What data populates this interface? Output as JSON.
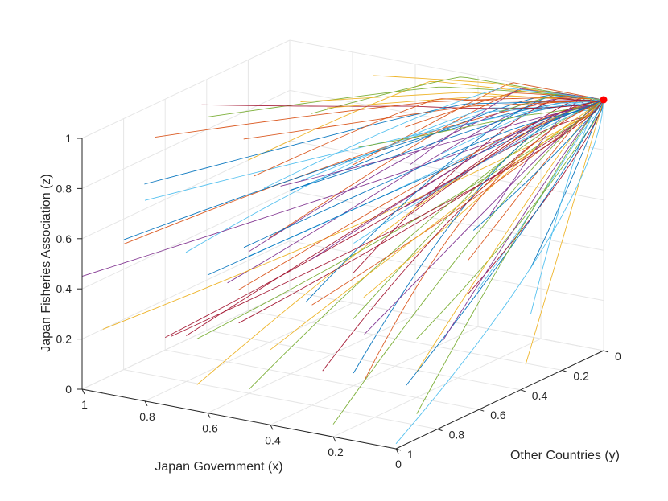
{
  "chart_data": {
    "type": "line3d",
    "xlabel": "Japan Government (x)",
    "ylabel": "Other Countries (y)",
    "zlabel": "Japan Fisheries Association (z)",
    "xlim": [
      0,
      1
    ],
    "ylim": [
      0,
      1
    ],
    "zlim": [
      0,
      1
    ],
    "x_ticks": [
      "0",
      "0.2",
      "0.4",
      "0.6",
      "0.8",
      "1"
    ],
    "y_ticks": [
      "0",
      "0.2",
      "0.4",
      "0.6",
      "0.8",
      "1"
    ],
    "z_ticks": [
      "0",
      "0.2",
      "0.4",
      "0.6",
      "0.8",
      "1"
    ],
    "grid": true,
    "trajectory_colors": [
      "#0072BD",
      "#D95319",
      "#EDB120",
      "#7E2F8E",
      "#77AC30",
      "#4DBEEE",
      "#A2142F"
    ],
    "equilibrium_point": {
      "x": 0,
      "y": 0,
      "z": 1,
      "color": "#ff0000"
    },
    "trajectories": [
      {
        "start": [
          1.0,
          0.0,
          0.4
        ]
      },
      {
        "start": [
          1.0,
          0.1,
          0.25
        ]
      },
      {
        "start": [
          1.0,
          0.2,
          0.6
        ]
      },
      {
        "start": [
          1.0,
          0.3,
          0.15
        ]
      },
      {
        "start": [
          1.0,
          0.4,
          0.85
        ]
      },
      {
        "start": [
          1.0,
          0.5,
          0.35
        ]
      },
      {
        "start": [
          1.0,
          0.6,
          0.05
        ]
      },
      {
        "start": [
          1.0,
          0.7,
          0.7
        ]
      },
      {
        "start": [
          1.0,
          0.8,
          0.5
        ]
      },
      {
        "start": [
          1.0,
          0.9,
          0.2
        ]
      },
      {
        "start": [
          1.0,
          1.0,
          0.45
        ]
      },
      {
        "start": [
          0.9,
          0.05,
          0.75
        ]
      },
      {
        "start": [
          0.9,
          0.35,
          0.3
        ]
      },
      {
        "start": [
          0.9,
          0.65,
          0.1
        ]
      },
      {
        "start": [
          0.9,
          0.95,
          0.6
        ]
      },
      {
        "start": [
          0.8,
          0.0,
          0.55
        ]
      },
      {
        "start": [
          0.8,
          0.25,
          0.9
        ]
      },
      {
        "start": [
          0.8,
          0.5,
          0.4
        ]
      },
      {
        "start": [
          0.8,
          0.75,
          0.15
        ]
      },
      {
        "start": [
          0.8,
          1.0,
          0.8
        ]
      },
      {
        "start": [
          0.7,
          0.15,
          0.2
        ]
      },
      {
        "start": [
          0.7,
          0.45,
          0.65
        ]
      },
      {
        "start": [
          0.7,
          0.7,
          0.35
        ]
      },
      {
        "start": [
          0.7,
          0.9,
          0.05
        ]
      },
      {
        "start": [
          0.6,
          0.05,
          0.45
        ]
      },
      {
        "start": [
          0.6,
          0.3,
          0.1
        ]
      },
      {
        "start": [
          0.6,
          0.55,
          0.75
        ]
      },
      {
        "start": [
          0.6,
          0.85,
          0.3
        ]
      },
      {
        "start": [
          0.6,
          1.0,
          0.55
        ]
      },
      {
        "start": [
          0.5,
          0.2,
          0.85
        ]
      },
      {
        "start": [
          0.5,
          0.4,
          0.25
        ]
      },
      {
        "start": [
          0.5,
          0.65,
          0.5
        ]
      },
      {
        "start": [
          0.5,
          0.95,
          0.1
        ]
      },
      {
        "start": [
          0.4,
          0.0,
          0.15
        ]
      },
      {
        "start": [
          0.4,
          0.3,
          0.6
        ]
      },
      {
        "start": [
          0.4,
          0.6,
          0.05
        ]
      },
      {
        "start": [
          0.4,
          0.8,
          0.4
        ]
      },
      {
        "start": [
          0.4,
          1.0,
          0.3
        ]
      },
      {
        "start": [
          0.3,
          0.1,
          0.5
        ]
      },
      {
        "start": [
          0.3,
          0.45,
          0.15
        ]
      },
      {
        "start": [
          0.3,
          0.75,
          0.65
        ]
      },
      {
        "start": [
          0.3,
          0.9,
          0.2
        ]
      },
      {
        "start": [
          0.2,
          0.05,
          0.3
        ]
      },
      {
        "start": [
          0.2,
          0.35,
          0.45
        ]
      },
      {
        "start": [
          0.2,
          0.6,
          0.1
        ]
      },
      {
        "start": [
          0.2,
          0.85,
          0.35
        ]
      },
      {
        "start": [
          0.2,
          1.0,
          0.05
        ]
      },
      {
        "start": [
          0.1,
          0.2,
          0.2
        ]
      },
      {
        "start": [
          0.1,
          0.5,
          0.4
        ]
      },
      {
        "start": [
          0.1,
          0.8,
          0.15
        ]
      },
      {
        "start": [
          0.1,
          1.0,
          0.25
        ]
      },
      {
        "start": [
          0.05,
          0.3,
          0.05
        ]
      },
      {
        "start": [
          0.05,
          0.7,
          0.3
        ]
      },
      {
        "start": [
          0.0,
          0.9,
          0.1
        ]
      },
      {
        "start": [
          0.0,
          1.0,
          0.02
        ]
      },
      {
        "start": [
          0.95,
          0.5,
          0.95
        ]
      },
      {
        "start": [
          0.85,
          0.15,
          0.05
        ]
      },
      {
        "start": [
          0.75,
          0.6,
          0.9
        ]
      },
      {
        "start": [
          0.65,
          0.35,
          0.95
        ]
      },
      {
        "start": [
          0.55,
          0.1,
          0.65
        ]
      },
      {
        "start": [
          0.45,
          0.5,
          0.9
        ]
      },
      {
        "start": [
          0.35,
          0.25,
          0.8
        ]
      },
      {
        "start": [
          0.25,
          0.55,
          0.7
        ]
      },
      {
        "start": [
          0.15,
          0.4,
          0.6
        ]
      },
      {
        "start": [
          0.9,
          0.8,
          0.95
        ]
      },
      {
        "start": [
          0.7,
          0.05,
          0.95
        ]
      },
      {
        "start": [
          0.5,
          0.8,
          0.85
        ]
      },
      {
        "start": [
          0.3,
          0.05,
          0.9
        ]
      },
      {
        "start": [
          0.95,
          0.2,
          0.5
        ]
      },
      {
        "start": [
          0.75,
          0.95,
          0.25
        ]
      },
      {
        "start": [
          0.65,
          0.75,
          0.55
        ]
      },
      {
        "start": [
          0.85,
          0.4,
          0.65
        ]
      }
    ]
  }
}
